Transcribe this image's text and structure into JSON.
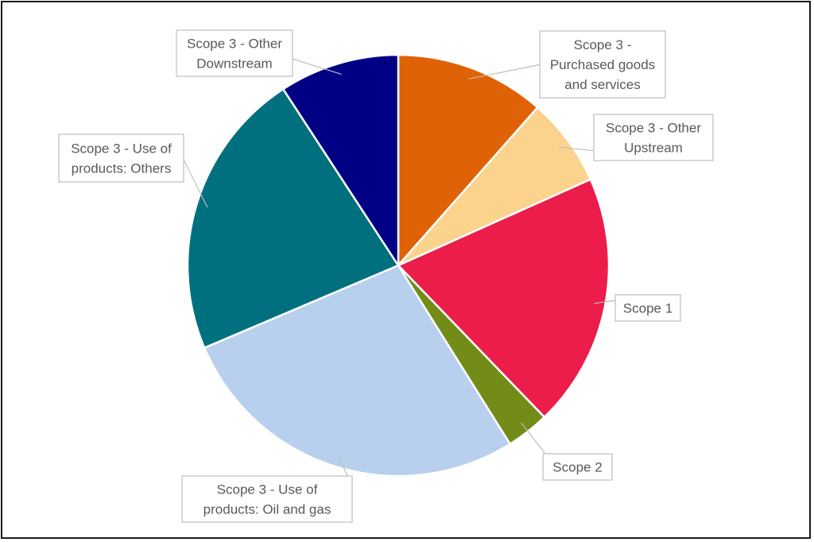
{
  "chart_data": {
    "type": "pie",
    "title": "",
    "start_angle_deg": 0,
    "direction": "clockwise",
    "slices": [
      {
        "label_lines": [
          "Scope 3 -",
          "Purchased goods",
          "and services"
        ],
        "value": 11.5,
        "color": "#DF6206"
      },
      {
        "label_lines": [
          "Scope 3 - Other",
          "Upstream"
        ],
        "value": 6.8,
        "color": "#FBD38D"
      },
      {
        "label_lines": [
          "Scope 1"
        ],
        "value": 19.5,
        "color": "#EC1C4B"
      },
      {
        "label_lines": [
          "Scope 2"
        ],
        "value": 3.3,
        "color": "#728C17"
      },
      {
        "label_lines": [
          "Scope 3 - Use of",
          "products: Oil and gas"
        ],
        "value": 27.5,
        "color": "#B8D0EE"
      },
      {
        "label_lines": [
          "Scope 3 - Use of",
          "products: Others"
        ],
        "value": 22.2,
        "color": "#00707E"
      },
      {
        "label_lines": [
          "Scope 3 - Other",
          "Downstream"
        ],
        "value": 9.2,
        "color": "#000084"
      }
    ]
  }
}
